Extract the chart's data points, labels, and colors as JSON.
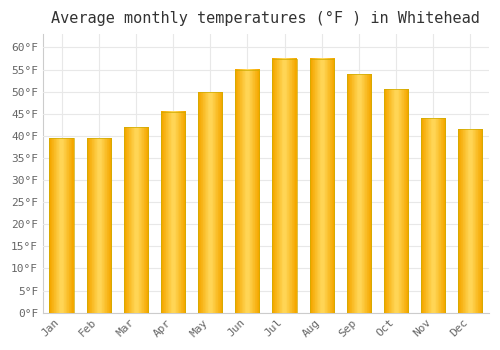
{
  "title": "Average monthly temperatures (°F ) in Whitehead",
  "months": [
    "Jan",
    "Feb",
    "Mar",
    "Apr",
    "May",
    "Jun",
    "Jul",
    "Aug",
    "Sep",
    "Oct",
    "Nov",
    "Dec"
  ],
  "values": [
    39.5,
    39.5,
    42,
    45.5,
    50,
    55,
    57.5,
    57.5,
    54,
    50.5,
    44,
    41.5
  ],
  "bar_color_outer": "#F5A800",
  "bar_color_inner": "#FFD555",
  "ylim": [
    0,
    63
  ],
  "yticks": [
    0,
    5,
    10,
    15,
    20,
    25,
    30,
    35,
    40,
    45,
    50,
    55,
    60
  ],
  "background_color": "#ffffff",
  "plot_area_color": "#ffffff",
  "grid_color": "#e8e8e8",
  "title_fontsize": 11,
  "tick_fontsize": 8,
  "font_family": "monospace",
  "title_color": "#333333",
  "tick_color": "#666666"
}
